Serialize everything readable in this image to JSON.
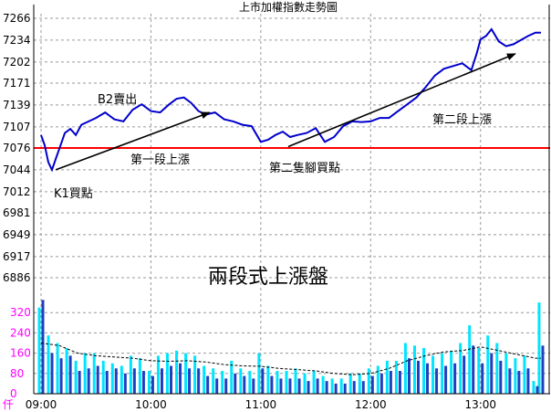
{
  "chart_data": [
    {
      "type": "line",
      "title": "上市加權指數走勢圖",
      "ylim": [
        6886,
        7266
      ],
      "y_ticks": [
        "7266",
        "7234",
        "7202",
        "7171",
        "7139",
        "7107",
        "7076",
        "7044",
        "7012",
        "6981",
        "6949",
        "6917",
        "6886"
      ],
      "x_ticks": [
        "09:00",
        "10:00",
        "11:00",
        "12:00",
        "13:00"
      ],
      "xlim": [
        "09:00",
        "13:35"
      ],
      "reference_line": 7076,
      "grid": true,
      "series": [
        {
          "color": "#0000cc",
          "x": [
            "09:00",
            "09:02",
            "09:04",
            "09:06",
            "09:08",
            "09:10",
            "09:13",
            "09:16",
            "09:19",
            "09:22",
            "09:26",
            "09:30",
            "09:35",
            "09:40",
            "09:45",
            "09:50",
            "09:55",
            "10:00",
            "10:05",
            "10:10",
            "10:14",
            "10:18",
            "10:22",
            "10:26",
            "10:30",
            "10:35",
            "10:40",
            "10:45",
            "10:50",
            "10:55",
            "11:00",
            "11:04",
            "11:08",
            "11:12",
            "11:16",
            "11:20",
            "11:25",
            "11:30",
            "11:35",
            "11:40",
            "11:45",
            "11:50",
            "11:55",
            "12:00",
            "12:05",
            "12:10",
            "12:15",
            "12:20",
            "12:25",
            "12:30",
            "12:35",
            "12:40",
            "12:45",
            "12:50",
            "12:55",
            "12:58",
            "13:00",
            "13:03",
            "13:06",
            "13:10",
            "13:14",
            "13:18",
            "13:22",
            "13:26",
            "13:30",
            "13:33"
          ],
          "y": [
            7095,
            7080,
            7055,
            7044,
            7060,
            7075,
            7098,
            7104,
            7095,
            7110,
            7115,
            7120,
            7128,
            7118,
            7115,
            7132,
            7140,
            7130,
            7128,
            7140,
            7148,
            7150,
            7142,
            7130,
            7125,
            7128,
            7118,
            7115,
            7110,
            7108,
            7085,
            7088,
            7095,
            7100,
            7092,
            7095,
            7098,
            7105,
            7085,
            7092,
            7108,
            7115,
            7114,
            7115,
            7120,
            7120,
            7130,
            7140,
            7150,
            7165,
            7182,
            7192,
            7196,
            7200,
            7190,
            7215,
            7235,
            7240,
            7250,
            7232,
            7225,
            7228,
            7234,
            7240,
            7245,
            7245
          ]
        }
      ],
      "annotations": [
        "B2賣出",
        "第一段上漲",
        "K1買點",
        "第二隻腳買點",
        "第二段上漲",
        "兩段式上漲盤"
      ]
    },
    {
      "type": "bar",
      "unit_label": "仟",
      "ylim": [
        0,
        400
      ],
      "y_ticks": [
        "320",
        "240",
        "160",
        "80",
        "0"
      ],
      "x_ticks": [
        "09:00",
        "10:00",
        "11:00",
        "12:00",
        "13:00"
      ],
      "xlim": [
        "09:00",
        "13:35"
      ],
      "series": [
        {
          "color": "#00e5ff",
          "x": [
            "09:00",
            "09:05",
            "09:10",
            "09:15",
            "09:20",
            "09:25",
            "09:30",
            "09:35",
            "09:40",
            "09:45",
            "09:50",
            "09:55",
            "10:00",
            "10:05",
            "10:10",
            "10:15",
            "10:20",
            "10:25",
            "10:30",
            "10:35",
            "10:40",
            "10:45",
            "10:50",
            "10:55",
            "11:00",
            "11:05",
            "11:10",
            "11:15",
            "11:20",
            "11:25",
            "11:30",
            "11:35",
            "11:40",
            "11:45",
            "11:50",
            "11:55",
            "12:00",
            "12:05",
            "12:10",
            "12:15",
            "12:20",
            "12:25",
            "12:30",
            "12:35",
            "12:40",
            "12:45",
            "12:50",
            "12:55",
            "13:00",
            "13:05",
            "13:10",
            "13:15",
            "13:20",
            "13:25",
            "13:30",
            "13:33"
          ],
          "values": [
            340,
            230,
            200,
            180,
            130,
            160,
            160,
            130,
            120,
            110,
            150,
            140,
            90,
            150,
            160,
            170,
            160,
            150,
            110,
            100,
            90,
            130,
            100,
            90,
            160,
            110,
            90,
            90,
            100,
            80,
            90,
            70,
            60,
            60,
            80,
            80,
            100,
            110,
            130,
            130,
            200,
            190,
            180,
            150,
            160,
            170,
            200,
            270,
            180,
            230,
            200,
            160,
            140,
            150,
            50,
            360
          ]
        },
        {
          "color": "#1f3fbf",
          "x": [
            "09:00",
            "09:05",
            "09:10",
            "09:15",
            "09:20",
            "09:25",
            "09:30",
            "09:35",
            "09:40",
            "09:45",
            "09:50",
            "09:55",
            "10:00",
            "10:05",
            "10:10",
            "10:15",
            "10:20",
            "10:25",
            "10:30",
            "10:35",
            "10:40",
            "10:45",
            "10:50",
            "10:55",
            "11:00",
            "11:05",
            "11:10",
            "11:15",
            "11:20",
            "11:25",
            "11:30",
            "11:35",
            "11:40",
            "11:45",
            "11:50",
            "11:55",
            "12:00",
            "12:05",
            "12:10",
            "12:15",
            "12:20",
            "12:25",
            "12:30",
            "12:35",
            "12:40",
            "12:45",
            "12:50",
            "12:55",
            "13:00",
            "13:05",
            "13:10",
            "13:15",
            "13:20",
            "13:25",
            "13:30",
            "13:33"
          ],
          "values": [
            370,
            160,
            140,
            150,
            90,
            100,
            110,
            90,
            100,
            80,
            100,
            90,
            70,
            100,
            110,
            120,
            100,
            100,
            70,
            60,
            60,
            80,
            70,
            60,
            100,
            70,
            60,
            60,
            60,
            50,
            60,
            50,
            40,
            40,
            50,
            50,
            70,
            80,
            90,
            90,
            140,
            130,
            120,
            100,
            110,
            120,
            150,
            190,
            120,
            160,
            130,
            100,
            90,
            100,
            30,
            190
          ]
        },
        {
          "color": "#000000",
          "style": "dashed",
          "x": [
            "09:00",
            "09:10",
            "09:20",
            "09:30",
            "09:40",
            "09:50",
            "10:00",
            "10:10",
            "10:20",
            "10:30",
            "10:40",
            "10:50",
            "11:00",
            "11:10",
            "11:20",
            "11:30",
            "11:40",
            "11:50",
            "12:00",
            "12:10",
            "12:20",
            "12:30",
            "12:40",
            "12:50",
            "13:00",
            "13:10",
            "13:20",
            "13:30",
            "13:33"
          ],
          "values": [
            200,
            190,
            160,
            150,
            145,
            140,
            130,
            128,
            130,
            125,
            115,
            110,
            108,
            100,
            95,
            90,
            80,
            75,
            80,
            100,
            130,
            150,
            165,
            170,
            185,
            170,
            155,
            140,
            140
          ]
        }
      ]
    }
  ]
}
